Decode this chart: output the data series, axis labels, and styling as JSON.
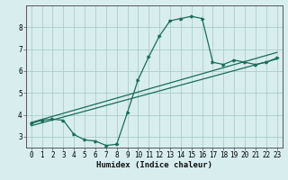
{
  "xlabel": "Humidex (Indice chaleur)",
  "bg_color": "#d8eeee",
  "grid_color": "#aacccc",
  "line_color": "#1a6b5a",
  "xlim": [
    -0.5,
    23.5
  ],
  "ylim": [
    2.5,
    9.0
  ],
  "xticks": [
    0,
    1,
    2,
    3,
    4,
    5,
    6,
    7,
    8,
    9,
    10,
    11,
    12,
    13,
    14,
    15,
    16,
    17,
    18,
    19,
    20,
    21,
    22,
    23
  ],
  "yticks": [
    3,
    4,
    5,
    6,
    7,
    8
  ],
  "curve_x": [
    0,
    1,
    2,
    3,
    4,
    5,
    6,
    7,
    8,
    9,
    10,
    11,
    12,
    13,
    14,
    15,
    16,
    17,
    18,
    19,
    20,
    21,
    22,
    23
  ],
  "curve_y": [
    3.6,
    3.75,
    3.8,
    3.75,
    3.1,
    2.85,
    2.8,
    2.6,
    2.65,
    4.1,
    5.6,
    6.65,
    7.6,
    8.3,
    8.4,
    8.5,
    8.4,
    6.4,
    6.3,
    6.5,
    6.4,
    6.3,
    6.4,
    6.6
  ],
  "line1_x": [
    0,
    23
  ],
  "line1_y": [
    3.5,
    6.55
  ],
  "line2_x": [
    0,
    23
  ],
  "line2_y": [
    3.65,
    6.85
  ],
  "font_size_xlabel": 6.5,
  "font_size_ticks": 5.5
}
